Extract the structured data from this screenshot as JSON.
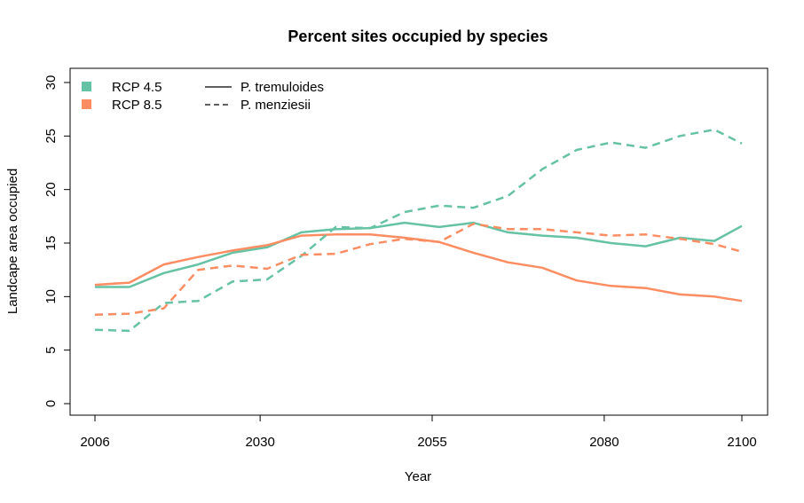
{
  "chart_data": {
    "type": "line",
    "title": "Percent sites occupied by species",
    "xlabel": "Year",
    "ylabel": "Landcape area occupied",
    "xlim": [
      2006,
      2100
    ],
    "ylim": [
      0,
      30
    ],
    "x_ticks": [
      2006,
      2030,
      2055,
      2080,
      2100
    ],
    "y_ticks": [
      0,
      5,
      10,
      15,
      20,
      25,
      30
    ],
    "grid": false,
    "colors": {
      "RCP 4.5": "#66c2a5",
      "RCP 8.5": "#fc8d62"
    },
    "legend_scenarios": [
      {
        "label": "RCP 4.5",
        "color": "#66c2a5"
      },
      {
        "label": "RCP 8.5",
        "color": "#fc8d62"
      }
    ],
    "legend_species": [
      {
        "label": "P. tremuloides",
        "dash": "solid"
      },
      {
        "label": "P. menziesii",
        "dash": "dashed"
      }
    ],
    "legend_position": "top-left",
    "x": [
      2006,
      2011,
      2016,
      2021,
      2026,
      2031,
      2036,
      2041,
      2046,
      2051,
      2056,
      2061,
      2066,
      2071,
      2076,
      2081,
      2086,
      2091,
      2096,
      2100
    ],
    "series": [
      {
        "scenario": "RCP 4.5",
        "species": "P. tremuloides",
        "color": "#66c2a5",
        "dash": "solid",
        "values": [
          10.9,
          10.9,
          12.2,
          13.0,
          14.1,
          14.6,
          16.0,
          16.3,
          16.4,
          16.9,
          16.5,
          16.9,
          16.0,
          15.7,
          15.5,
          15.0,
          14.7,
          15.5,
          15.2,
          16.6
        ]
      },
      {
        "scenario": "RCP 8.5",
        "species": "P. tremuloides",
        "color": "#fc8d62",
        "dash": "solid",
        "values": [
          11.1,
          11.3,
          13.0,
          13.7,
          14.3,
          14.8,
          15.7,
          15.8,
          15.8,
          15.5,
          15.1,
          14.1,
          13.2,
          12.7,
          11.5,
          11.0,
          10.8,
          10.2,
          10.0,
          9.6
        ]
      },
      {
        "scenario": "RCP 4.5",
        "species": "P. menziesii",
        "color": "#66c2a5",
        "dash": "dashed",
        "values": [
          6.9,
          6.8,
          9.4,
          9.6,
          11.4,
          11.6,
          13.8,
          16.5,
          16.4,
          17.9,
          18.5,
          18.3,
          19.4,
          21.9,
          23.7,
          24.4,
          23.9,
          25.0,
          25.6,
          24.3
        ]
      },
      {
        "scenario": "RCP 8.5",
        "species": "P. menziesii",
        "color": "#fc8d62",
        "dash": "dashed",
        "values": [
          8.3,
          8.4,
          8.9,
          12.5,
          12.9,
          12.6,
          13.9,
          14.0,
          14.9,
          15.4,
          15.1,
          16.8,
          16.3,
          16.3,
          16.0,
          15.7,
          15.8,
          15.4,
          14.9,
          14.2
        ]
      }
    ]
  }
}
